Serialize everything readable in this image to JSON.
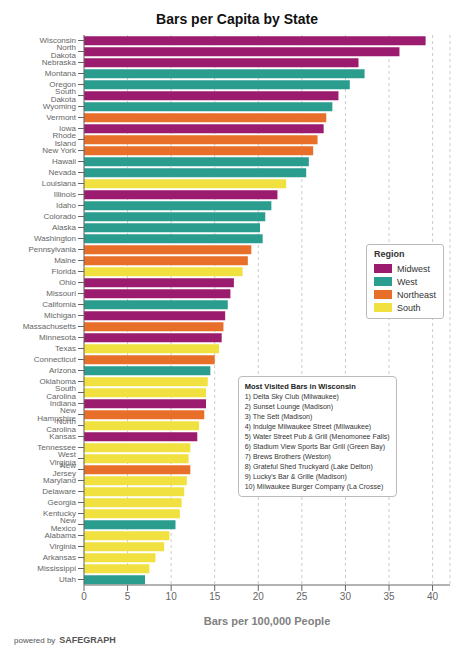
{
  "chart_data": {
    "type": "bar",
    "orientation": "horizontal",
    "stacked": true,
    "grid": true,
    "legend": "right",
    "legend_title": "Region",
    "title": "Bars per Capita by State",
    "x_label": "Bars per 100,000 People",
    "xlim": [
      0,
      42
    ],
    "xticks": [
      0,
      5,
      10,
      15,
      20,
      25,
      30,
      35,
      40
    ],
    "categories": [
      "Wisconsin",
      "North Dakota",
      "Nebraska",
      "Montana",
      "Oregon",
      "South Dakota",
      "Wyoming",
      "Vermont",
      "Iowa",
      "Rhode Island",
      "New York",
      "Hawaii",
      "Nevada",
      "Louisiana",
      "Illinois",
      "Idaho",
      "Colorado",
      "Alaska",
      "Washington",
      "Pennsylvania",
      "Maine",
      "Florida",
      "Ohio",
      "Missouri",
      "California",
      "Michigan",
      "Massachusetts",
      "Minnesota",
      "Texas",
      "Connecticut",
      "Arizona",
      "Oklahoma",
      "South Carolina",
      "Indiana",
      "New Hampshire",
      "North Carolina",
      "Kansas",
      "Tennessee",
      "West Virginia",
      "New Jersey",
      "Maryland",
      "Delaware",
      "Georgia",
      "Kentucky",
      "New Mexico",
      "Alabama",
      "Virginia",
      "Arkansas",
      "Mississippi",
      "Utah"
    ],
    "series": [
      {
        "name": "Midwest",
        "color": "#9B1B6E",
        "values": [
          39.2,
          36.2,
          31.5,
          null,
          null,
          29.2,
          null,
          null,
          27.5,
          null,
          null,
          null,
          null,
          null,
          22.2,
          null,
          null,
          null,
          null,
          null,
          null,
          null,
          17.2,
          16.8,
          null,
          16.2,
          null,
          15.8,
          null,
          null,
          null,
          null,
          null,
          14.0,
          null,
          null,
          13.0,
          null,
          null,
          null,
          null,
          null,
          null,
          null,
          null,
          null,
          null,
          null,
          null,
          null
        ]
      },
      {
        "name": "West",
        "color": "#2A9D8F",
        "values": [
          null,
          null,
          null,
          32.2,
          30.5,
          null,
          28.5,
          null,
          null,
          null,
          null,
          25.8,
          25.5,
          null,
          null,
          21.5,
          20.8,
          20.2,
          20.5,
          null,
          null,
          null,
          null,
          null,
          16.5,
          null,
          null,
          null,
          null,
          null,
          14.5,
          null,
          null,
          null,
          null,
          null,
          null,
          null,
          null,
          null,
          null,
          null,
          null,
          null,
          10.5,
          null,
          null,
          null,
          null,
          7.0
        ]
      },
      {
        "name": "Northeast",
        "color": "#E76F2A",
        "values": [
          null,
          null,
          null,
          null,
          null,
          null,
          null,
          27.8,
          null,
          26.8,
          26.3,
          null,
          null,
          null,
          null,
          null,
          null,
          null,
          null,
          19.2,
          18.8,
          null,
          null,
          null,
          null,
          null,
          16.0,
          null,
          null,
          15.0,
          null,
          null,
          null,
          null,
          13.8,
          null,
          null,
          null,
          null,
          12.2,
          null,
          null,
          null,
          null,
          null,
          null,
          null,
          null,
          null,
          null
        ]
      },
      {
        "name": "South",
        "color": "#F0E040",
        "values": [
          null,
          null,
          null,
          null,
          null,
          null,
          null,
          null,
          null,
          null,
          null,
          null,
          null,
          23.2,
          null,
          null,
          null,
          null,
          null,
          null,
          null,
          18.2,
          null,
          null,
          null,
          null,
          null,
          null,
          15.5,
          null,
          null,
          14.2,
          14.0,
          null,
          null,
          13.2,
          null,
          12.2,
          12.0,
          null,
          11.8,
          11.5,
          11.2,
          11.0,
          null,
          9.8,
          9.2,
          8.2,
          7.5,
          null
        ]
      }
    ],
    "annotations": [
      {
        "title": "Most Visited Bars in Wisconsin",
        "lines": [
          "1) Delta Sky Club (Milwaukee)",
          "2) Sunset Lounge (Madison)",
          "3) The Sett (Madison)",
          "4) Indulge Milwaukee Street (Milwaukee)",
          "5) Water Street Pub & Grill (Menomonee Falls)",
          "6) Stadium View Sports Bar Grill (Green Bay)",
          "7) Brews Brothers (Weston)",
          "8) Grateful Shed Truckyard (Lake Delton)",
          "9) Lucky's Bar & Grille (Madison)",
          "10) Milwaukee Burger Company (La Crosse)"
        ]
      }
    ],
    "footer": [
      "powered by",
      "SAFEGRAPH"
    ]
  }
}
